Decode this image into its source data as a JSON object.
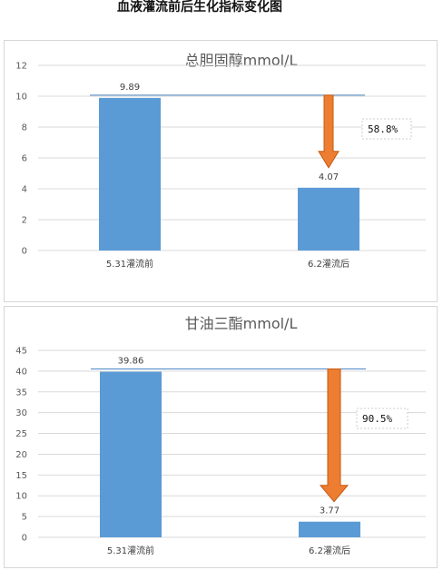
{
  "page": {
    "title": "血液灌流前后生化指标变化图"
  },
  "colors": {
    "bar": "#5b9bd5",
    "arrow": "#ed7d31",
    "refline": "#4a86c5",
    "grid": "#d9d9d9"
  },
  "chart_data": [
    {
      "type": "bar",
      "title": "总胆固醇mmol/L",
      "categories": [
        "5.31灌流前",
        "6.2灌流后"
      ],
      "values": [
        9.89,
        4.07
      ],
      "value_labels": [
        "9.89",
        "4.07"
      ],
      "ylim": [
        0,
        12
      ],
      "yticks": [
        0,
        2,
        4,
        6,
        8,
        10,
        12
      ],
      "grid": true,
      "annotation": {
        "text": "58.8%",
        "type": "decrease-arrow"
      }
    },
    {
      "type": "bar",
      "title": "甘油三酯mmol/L",
      "categories": [
        "5.31灌流前",
        "6.2灌流后"
      ],
      "values": [
        39.86,
        3.77
      ],
      "value_labels": [
        "39.86",
        "3.77"
      ],
      "ylim": [
        0,
        45
      ],
      "yticks": [
        0,
        5,
        10,
        15,
        20,
        25,
        30,
        35,
        40,
        45
      ],
      "grid": true,
      "annotation": {
        "text": "90.5%",
        "type": "decrease-arrow"
      }
    }
  ]
}
